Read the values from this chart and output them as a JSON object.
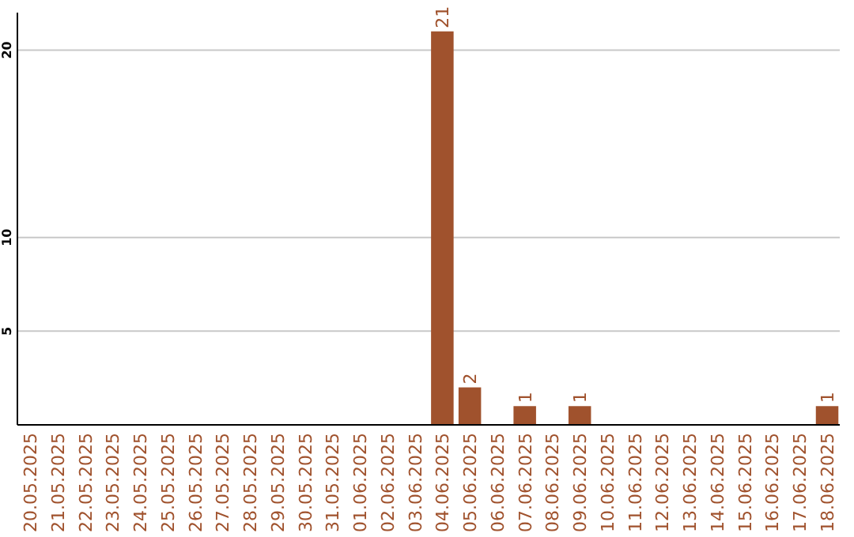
{
  "chart_data": {
    "type": "bar",
    "categories": [
      "20.05.2025",
      "21.05.2025",
      "22.05.2025",
      "23.05.2025",
      "24.05.2025",
      "25.05.2025",
      "26.05.2025",
      "27.05.2025",
      "28.05.2025",
      "29.05.2025",
      "30.05.2025",
      "31.05.2025",
      "01.06.2025",
      "02.06.2025",
      "03.06.2025",
      "04.06.2025",
      "05.06.2025",
      "06.06.2025",
      "07.06.2025",
      "08.06.2025",
      "09.06.2025",
      "10.06.2025",
      "11.06.2025",
      "12.06.2025",
      "13.06.2025",
      "14.06.2025",
      "15.06.2025",
      "16.06.2025",
      "17.06.2025",
      "18.06.2025"
    ],
    "values": [
      0,
      0,
      0,
      0,
      0,
      0,
      0,
      0,
      0,
      0,
      0,
      0,
      0,
      0,
      0,
      21,
      2,
      0,
      1,
      0,
      1,
      0,
      0,
      0,
      0,
      0,
      0,
      0,
      0,
      1
    ],
    "value_labels": [
      null,
      null,
      null,
      null,
      null,
      null,
      null,
      null,
      null,
      null,
      null,
      null,
      null,
      null,
      null,
      "21",
      "2",
      null,
      "1",
      null,
      "1",
      null,
      null,
      null,
      null,
      null,
      null,
      null,
      null,
      "1"
    ],
    "color": "#a0522d",
    "ylim": [
      0,
      22
    ],
    "yticks": [
      5,
      10,
      20
    ],
    "grid": "y"
  }
}
